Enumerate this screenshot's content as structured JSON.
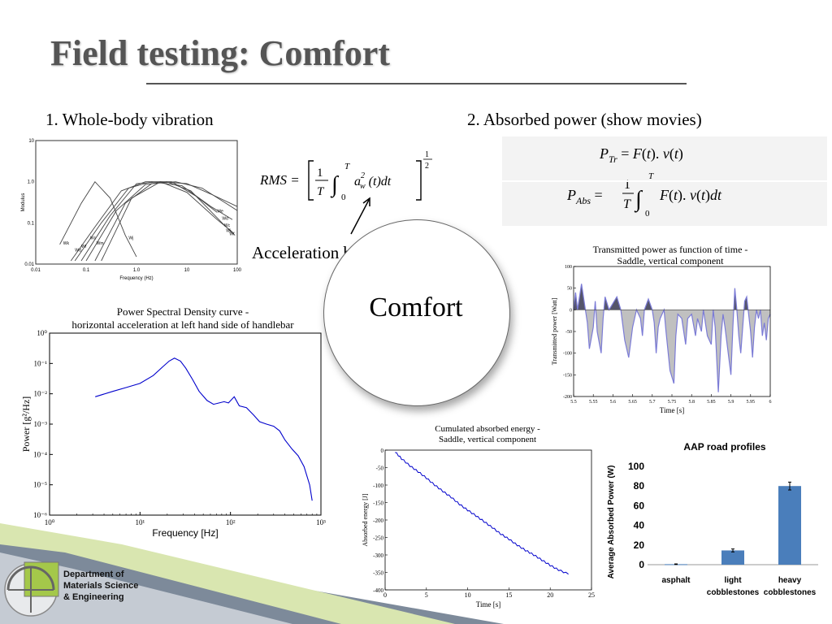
{
  "slide": {
    "title": "Field testing: Comfort",
    "section1": "1. Whole-body vibration",
    "section2": "2. Absorbed power (show movies)",
    "accel_label": "Acceleration based",
    "center_word": "Comfort",
    "department_lines": [
      "Department of",
      "Materials Science",
      "& Engineering"
    ]
  },
  "formulas": {
    "rms": "RMS = [ (1/T) ∫₀ᵀ a²_w (t) dt ]^½",
    "p_tr": "P_Tr = F(t). v(t)",
    "p_abs": "P_Abs = (1/T) ∫₀ᵀ F(t). v(t) dt"
  },
  "chart_data": [
    {
      "type": "line",
      "title": "",
      "xlabel": "Frequency (Hz)",
      "ylabel": "Modulus",
      "x_scale": "log",
      "y_scale": "log",
      "xlim": [
        0.01,
        100
      ],
      "ylim": [
        0.01,
        10
      ],
      "x_ticks": [
        "0.01",
        "0.1",
        "1.0",
        "10",
        "100"
      ],
      "y_ticks": [
        "10",
        "1.0",
        "0.1",
        "0.01"
      ],
      "series": [
        {
          "name": "Wf",
          "points": [
            [
              0.03,
              0.03
            ],
            [
              0.08,
              0.3
            ],
            [
              0.15,
              1.0
            ],
            [
              0.3,
              0.4
            ],
            [
              0.6,
              0.05
            ],
            [
              1.0,
              0.015
            ]
          ]
        },
        {
          "name": "Wc",
          "points": [
            [
              0.05,
              0.012
            ],
            [
              0.15,
              0.08
            ],
            [
              0.5,
              0.6
            ],
            [
              1.5,
              1.0
            ],
            [
              5,
              1.0
            ],
            [
              15,
              0.45
            ],
            [
              40,
              0.18
            ]
          ]
        },
        {
          "name": "Wd",
          "points": [
            [
              0.06,
              0.012
            ],
            [
              0.2,
              0.1
            ],
            [
              0.7,
              0.7
            ],
            [
              2,
              1.0
            ],
            [
              8,
              0.8
            ],
            [
              30,
              0.25
            ],
            [
              80,
              0.12
            ]
          ]
        },
        {
          "name": "We",
          "points": [
            [
              0.08,
              0.012
            ],
            [
              0.3,
              0.15
            ],
            [
              1,
              0.9
            ],
            [
              3,
              1.0
            ],
            [
              10,
              0.55
            ],
            [
              40,
              0.12
            ],
            [
              80,
              0.06
            ]
          ]
        },
        {
          "name": "Wj",
          "points": [
            [
              0.1,
              0.012
            ],
            [
              0.4,
              0.2
            ],
            [
              1.5,
              0.85
            ],
            [
              4,
              1.0
            ],
            [
              12,
              0.6
            ],
            [
              50,
              0.1
            ],
            [
              90,
              0.05
            ]
          ]
        },
        {
          "name": "Wk",
          "points": [
            [
              0.15,
              0.012
            ],
            [
              0.6,
              0.3
            ],
            [
              2,
              0.9
            ],
            [
              6,
              1.0
            ],
            [
              20,
              0.7
            ],
            [
              60,
              0.3
            ],
            [
              100,
              0.2
            ]
          ]
        },
        {
          "name": "Wm",
          "points": [
            [
              0.2,
              0.012
            ],
            [
              0.8,
              0.4
            ],
            [
              3,
              1.0
            ],
            [
              10,
              0.9
            ],
            [
              30,
              0.5
            ],
            [
              100,
              0.25
            ]
          ]
        }
      ],
      "curve_labels": [
        "Wk",
        "Wd",
        "Wf",
        "Wc",
        "Wm",
        "Wj",
        "We",
        "Wd",
        "Wc",
        "Wj",
        "Wf"
      ]
    },
    {
      "type": "line",
      "title": "Power Spectral Density curve -",
      "subtitle": "horizontal acceleration at left hand side of handlebar",
      "xlabel": "Frequency [Hz]",
      "ylabel": "Power [g²/Hz]",
      "x_scale": "log",
      "y_scale": "log",
      "xlim": [
        1,
        1000
      ],
      "ylim": [
        1e-06,
        1
      ],
      "x_ticks": [
        "10⁰",
        "10¹",
        "10²",
        "10³"
      ],
      "y_ticks": [
        "10⁰",
        "10⁻¹",
        "10⁻²",
        "10⁻³",
        "10⁻⁴",
        "10⁻⁵",
        "10⁻⁶"
      ],
      "color": "#0000cc",
      "points": [
        [
          3.2,
          0.008
        ],
        [
          5,
          0.012
        ],
        [
          7,
          0.016
        ],
        [
          10,
          0.022
        ],
        [
          14,
          0.04
        ],
        [
          18,
          0.08
        ],
        [
          21,
          0.12
        ],
        [
          24,
          0.15
        ],
        [
          28,
          0.12
        ],
        [
          32,
          0.07
        ],
        [
          38,
          0.03
        ],
        [
          45,
          0.012
        ],
        [
          55,
          0.006
        ],
        [
          65,
          0.0045
        ],
        [
          75,
          0.005
        ],
        [
          85,
          0.0055
        ],
        [
          95,
          0.005
        ],
        [
          110,
          0.008
        ],
        [
          125,
          0.004
        ],
        [
          150,
          0.0035
        ],
        [
          180,
          0.002
        ],
        [
          210,
          0.0012
        ],
        [
          250,
          0.001
        ],
        [
          300,
          0.00085
        ],
        [
          350,
          0.0006
        ],
        [
          400,
          0.0003
        ],
        [
          480,
          0.00015
        ],
        [
          560,
          9e-05
        ],
        [
          650,
          4e-05
        ],
        [
          750,
          1e-05
        ],
        [
          800,
          3e-06
        ]
      ]
    },
    {
      "type": "area",
      "title": "Transmitted power as function of time -",
      "subtitle": "Saddle, vertical component",
      "xlabel": "Time [s]",
      "ylabel": "Transmitted power [Watt]",
      "xlim": [
        5.5,
        6
      ],
      "ylim": [
        -200,
        100
      ],
      "x_ticks": [
        "5.5",
        "5.55",
        "5.6",
        "5.65",
        "5.7",
        "5.75",
        "5.8",
        "5.85",
        "5.9",
        "5.95",
        "6"
      ],
      "y_ticks": [
        "100",
        "50",
        "0",
        "-50",
        "-100",
        "-150",
        "-200"
      ],
      "colors": {
        "positive": "#55556a",
        "negative": "#c0c0c0",
        "line": "#7b7bd6"
      },
      "points": [
        [
          5.5,
          0
        ],
        [
          5.505,
          40
        ],
        [
          5.51,
          0
        ],
        [
          5.52,
          60
        ],
        [
          5.53,
          0
        ],
        [
          5.535,
          -30
        ],
        [
          5.54,
          -90
        ],
        [
          5.55,
          -40
        ],
        [
          5.555,
          20
        ],
        [
          5.56,
          -50
        ],
        [
          5.57,
          -100
        ],
        [
          5.575,
          -20
        ],
        [
          5.58,
          30
        ],
        [
          5.59,
          0
        ],
        [
          5.6,
          15
        ],
        [
          5.61,
          30
        ],
        [
          5.62,
          0
        ],
        [
          5.63,
          -70
        ],
        [
          5.64,
          -110
        ],
        [
          5.65,
          -40
        ],
        [
          5.66,
          0
        ],
        [
          5.67,
          -20
        ],
        [
          5.675,
          -60
        ],
        [
          5.68,
          0
        ],
        [
          5.69,
          25
        ],
        [
          5.7,
          0
        ],
        [
          5.705,
          -30
        ],
        [
          5.71,
          -100
        ],
        [
          5.715,
          -40
        ],
        [
          5.72,
          -20
        ],
        [
          5.73,
          0
        ],
        [
          5.735,
          -50
        ],
        [
          5.745,
          -140
        ],
        [
          5.755,
          -170
        ],
        [
          5.76,
          -60
        ],
        [
          5.765,
          -10
        ],
        [
          5.775,
          -20
        ],
        [
          5.785,
          -80
        ],
        [
          5.79,
          -20
        ],
        [
          5.8,
          -10
        ],
        [
          5.81,
          -60
        ],
        [
          5.815,
          -20
        ],
        [
          5.825,
          -50
        ],
        [
          5.83,
          0
        ],
        [
          5.84,
          -60
        ],
        [
          5.85,
          -80
        ],
        [
          5.855,
          0
        ],
        [
          5.86,
          -40
        ],
        [
          5.868,
          -190
        ],
        [
          5.875,
          -60
        ],
        [
          5.88,
          -10
        ],
        [
          5.885,
          -40
        ],
        [
          5.9,
          -150
        ],
        [
          5.905,
          -40
        ],
        [
          5.91,
          50
        ],
        [
          5.915,
          0
        ],
        [
          5.92,
          -60
        ],
        [
          5.925,
          -100
        ],
        [
          5.93,
          -40
        ],
        [
          5.935,
          20
        ],
        [
          5.94,
          30
        ],
        [
          5.945,
          -10
        ],
        [
          5.95,
          -50
        ],
        [
          5.955,
          -110
        ],
        [
          5.96,
          -40
        ],
        [
          5.965,
          0
        ],
        [
          5.97,
          -20
        ],
        [
          5.975,
          0
        ],
        [
          5.98,
          -60
        ],
        [
          5.985,
          -30
        ],
        [
          5.99,
          -70
        ],
        [
          5.995,
          -20
        ],
        [
          6,
          -10
        ]
      ]
    },
    {
      "type": "line",
      "title": "Cumulated absorbed energy -",
      "subtitle": "Saddle, vertical component",
      "xlabel": "Time [s]",
      "ylabel": "Absorbed energy [J]",
      "xlim": [
        0,
        25
      ],
      "ylim": [
        -400,
        0
      ],
      "x_ticks": [
        "0",
        "5",
        "10",
        "15",
        "20",
        "25"
      ],
      "y_ticks": [
        "0",
        "-50",
        "-100",
        "-150",
        "-200",
        "-250",
        "-300",
        "-350",
        "-400"
      ],
      "color": "#0000cc",
      "points": [
        [
          1.2,
          -5
        ],
        [
          2,
          -25
        ],
        [
          3,
          -45
        ],
        [
          4,
          -62
        ],
        [
          5,
          -80
        ],
        [
          6,
          -100
        ],
        [
          7,
          -118
        ],
        [
          8,
          -135
        ],
        [
          9,
          -155
        ],
        [
          10,
          -172
        ],
        [
          11,
          -188
        ],
        [
          12,
          -205
        ],
        [
          13,
          -222
        ],
        [
          14,
          -240
        ],
        [
          15,
          -255
        ],
        [
          16,
          -272
        ],
        [
          17,
          -287
        ],
        [
          18,
          -300
        ],
        [
          19,
          -315
        ],
        [
          20,
          -330
        ],
        [
          21,
          -343
        ],
        [
          22.2,
          -355
        ]
      ]
    },
    {
      "type": "bar",
      "title": "AAP road profiles",
      "xlabel": "",
      "ylabel": "Average Absorbed Power (W)",
      "ylim": [
        0,
        100
      ],
      "y_ticks": [
        "0",
        "20",
        "40",
        "60",
        "80",
        "100"
      ],
      "categories": [
        [
          "asphalt"
        ],
        [
          "light",
          "cobblestones"
        ],
        [
          "heavy",
          "cobblestones"
        ]
      ],
      "values": [
        0.5,
        14.5,
        80
      ],
      "errors": [
        0.3,
        1.5,
        4
      ],
      "color": "#4a7ebb"
    }
  ]
}
